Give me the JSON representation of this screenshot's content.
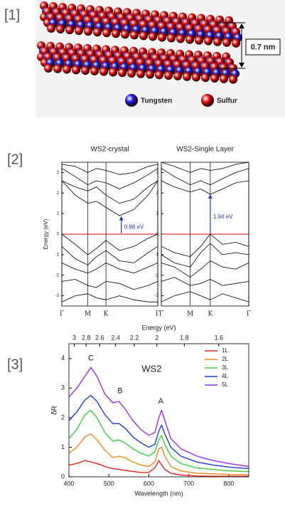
{
  "panels": [
    "[1]",
    "[2]",
    "[3]"
  ],
  "structure": {
    "spacing_label": "0.7 nm",
    "legend": [
      {
        "label": "Tungsten",
        "color": "#1c1cd8"
      },
      {
        "label": "Sulfur",
        "color": "#e01414"
      }
    ]
  },
  "chart_data": [
    {
      "type": "band",
      "title": "WS2-crystal",
      "y_label": "Energy (eV)",
      "xlim": [
        0,
        1
      ],
      "xticks": [
        {
          "value": 0,
          "label": "Γ"
        },
        {
          "value": 0.27,
          "label": "M"
        },
        {
          "value": 0.46,
          "label": "K"
        },
        {
          "value": 1,
          "label": "Γ"
        }
      ],
      "ylim": [
        -3.5,
        3.5
      ],
      "yticks": [
        -3,
        -2,
        -1,
        0,
        1,
        2,
        3
      ],
      "fermi_level": 0,
      "fermi_color": "#e00000",
      "color": "#000000",
      "x": [
        0,
        0.14,
        0.27,
        0.36,
        0.46,
        0.6,
        0.75,
        0.9,
        1
      ],
      "series": [
        {
          "values": [
            2.6,
            1.9,
            1.5,
            1.6,
            1.3,
            0.9,
            1.2,
            1.9,
            2.6
          ]
        },
        {
          "values": [
            2.6,
            2.3,
            2.1,
            2.3,
            1.9,
            1.5,
            1.7,
            2.3,
            2.6
          ]
        },
        {
          "values": [
            3.2,
            2.8,
            2.4,
            2.6,
            2.5,
            2.2,
            2.5,
            2.9,
            3.2
          ]
        },
        {
          "values": [
            3.4,
            3.3,
            3.0,
            3.2,
            3.1,
            2.9,
            3.0,
            3.3,
            3.4
          ]
        },
        {
          "values": [
            0,
            -0.5,
            -1.0,
            -0.7,
            -0.3,
            -0.8,
            -0.6,
            -0.2,
            0
          ]
        },
        {
          "values": [
            -0.6,
            -1.2,
            -1.5,
            -1.1,
            -0.8,
            -1.3,
            -1.4,
            -0.9,
            -0.6
          ]
        },
        {
          "values": [
            -1.4,
            -1.7,
            -1.9,
            -1.7,
            -1.4,
            -1.7,
            -1.9,
            -1.6,
            -1.4
          ]
        },
        {
          "values": [
            -2.3,
            -2.2,
            -2.5,
            -2.6,
            -2.3,
            -2.4,
            -2.7,
            -2.5,
            -2.3
          ]
        },
        {
          "values": [
            -3.3,
            -3.0,
            -2.9,
            -3.1,
            -3.2,
            -3.0,
            -3.2,
            -3.3,
            -3.3
          ]
        }
      ],
      "annotations": [
        {
          "text": "0.88 eV",
          "x": 0.62,
          "y": [
            0.05,
            0.88
          ],
          "color": "#2a3ab8"
        }
      ]
    },
    {
      "type": "band",
      "title": "WS2-Single Layer",
      "xlim": [
        0,
        1
      ],
      "xticks": [
        {
          "value": 0,
          "label": "Γ"
        },
        {
          "value": 0.33,
          "label": "M"
        },
        {
          "value": 0.56,
          "label": "K"
        },
        {
          "value": 1,
          "label": "Γ"
        }
      ],
      "ylim": [
        -3.5,
        3.5
      ],
      "yticks": [
        -3,
        -2,
        -1,
        0,
        1,
        2,
        3
      ],
      "fermi_level": 0,
      "fermi_color": "#e00000",
      "color": "#000000",
      "x": [
        0,
        0.15,
        0.33,
        0.45,
        0.56,
        0.7,
        0.85,
        1
      ],
      "series": [
        {
          "values": [
            2.6,
            2.3,
            2.05,
            2.2,
            1.94,
            2.2,
            2.5,
            2.6
          ]
        },
        {
          "values": [
            3.2,
            2.8,
            2.4,
            2.6,
            2.4,
            2.7,
            3.0,
            3.2
          ]
        },
        {
          "values": [
            3.5,
            3.3,
            3.0,
            3.2,
            3.1,
            3.2,
            3.4,
            3.5
          ]
        },
        {
          "values": [
            -0.6,
            -0.9,
            -1.1,
            -0.6,
            0,
            -0.5,
            -0.4,
            -0.6
          ]
        },
        {
          "values": [
            -1.0,
            -1.4,
            -1.6,
            -0.9,
            -0.45,
            -1.0,
            -0.9,
            -1.0
          ]
        },
        {
          "values": [
            -1.4,
            -1.6,
            -2.1,
            -1.7,
            -1.3,
            -1.6,
            -1.7,
            -1.4
          ]
        },
        {
          "values": [
            -2.3,
            -2.1,
            -2.5,
            -2.4,
            -2.2,
            -2.5,
            -2.4,
            -2.3
          ]
        },
        {
          "values": [
            -3.3,
            -3.0,
            -2.8,
            -3.0,
            -3.2,
            -2.9,
            -3.1,
            -3.3
          ]
        }
      ],
      "annotations": [
        {
          "text": "1.94 eV",
          "x": 0.56,
          "y": [
            0,
            1.94
          ],
          "color": "#2a3ab8"
        }
      ]
    },
    {
      "type": "line",
      "title": "WS2",
      "x_label": "Wavelength (nm)",
      "x2_label": "Energy (eV)",
      "y_label": "δR",
      "xlim": [
        400,
        850
      ],
      "xticks": [
        400,
        500,
        600,
        700,
        800
      ],
      "x2ticks": [
        3,
        2.8,
        2.6,
        2.4,
        2.2,
        2,
        1.8,
        1.6
      ],
      "ylim": [
        0,
        4.5
      ],
      "yticks": [
        0,
        1,
        2,
        3,
        4
      ],
      "legend": "upper right",
      "x": [
        400,
        420,
        440,
        455,
        470,
        490,
        510,
        525,
        540,
        560,
        580,
        600,
        615,
        625,
        632,
        640,
        655,
        680,
        720,
        760,
        800,
        850
      ],
      "series": [
        {
          "name": "1L",
          "color": "#e8241c",
          "values": [
            0.4,
            0.45,
            0.55,
            0.5,
            0.45,
            0.35,
            0.28,
            0.25,
            0.22,
            0.18,
            0.15,
            0.15,
            0.3,
            0.55,
            0.4,
            0.25,
            0.12,
            0.06,
            0.03,
            0.02,
            0.02,
            0.02
          ]
        },
        {
          "name": "2L",
          "color": "#f08a1c",
          "values": [
            0.8,
            1.0,
            1.35,
            1.45,
            1.25,
            0.9,
            0.65,
            0.7,
            0.65,
            0.5,
            0.4,
            0.35,
            0.5,
            0.95,
            1.0,
            0.7,
            0.35,
            0.2,
            0.12,
            0.1,
            0.08,
            0.07
          ]
        },
        {
          "name": "3L",
          "color": "#3cd03c",
          "values": [
            1.3,
            1.6,
            2.1,
            2.25,
            2.0,
            1.5,
            1.2,
            1.25,
            1.15,
            0.95,
            0.8,
            0.7,
            0.85,
            1.25,
            1.4,
            1.1,
            0.7,
            0.45,
            0.3,
            0.25,
            0.2,
            0.18
          ]
        },
        {
          "name": "4L",
          "color": "#1c3ce0",
          "values": [
            1.9,
            2.2,
            2.6,
            2.75,
            2.55,
            2.1,
            1.8,
            1.8,
            1.65,
            1.35,
            1.15,
            1.0,
            1.1,
            1.55,
            1.75,
            1.45,
            1.0,
            0.7,
            0.5,
            0.4,
            0.33,
            0.28
          ]
        },
        {
          "name": "5L",
          "color": "#9a30e8",
          "values": [
            2.7,
            3.0,
            3.4,
            3.7,
            3.4,
            2.8,
            2.5,
            2.55,
            2.3,
            1.9,
            1.6,
            1.4,
            1.5,
            2.0,
            2.25,
            1.9,
            1.3,
            0.95,
            0.7,
            0.55,
            0.45,
            0.35
          ]
        }
      ],
      "annotations": [
        {
          "text": "C",
          "x": 455,
          "y": 4.0
        },
        {
          "text": "B",
          "x": 528,
          "y": 2.9
        },
        {
          "text": "A",
          "x": 630,
          "y": 2.55
        }
      ]
    }
  ]
}
